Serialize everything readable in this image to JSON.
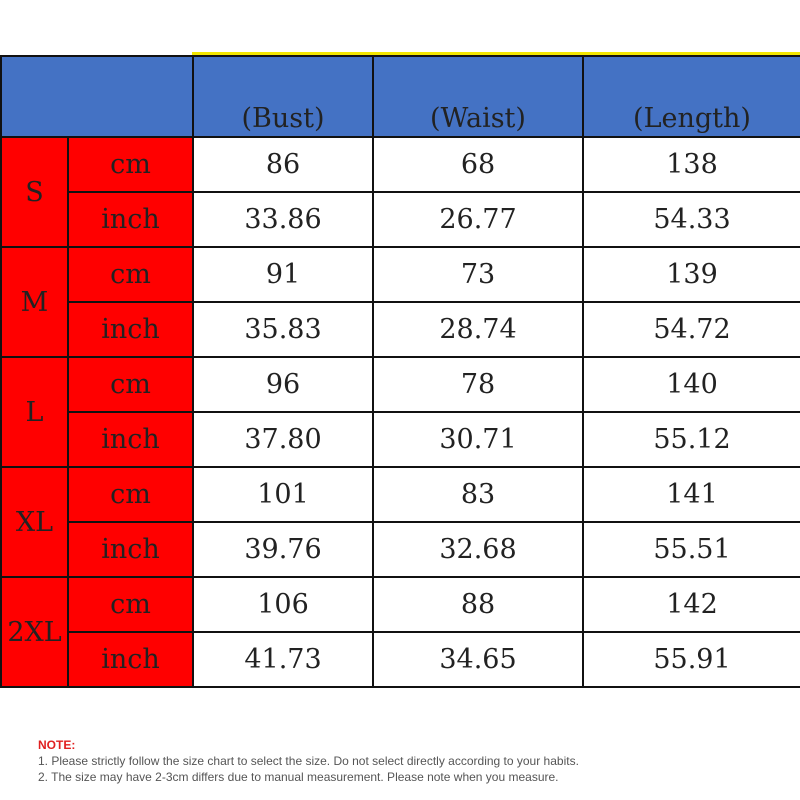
{
  "header": {
    "bust": "(Bust)",
    "waist": "(Waist)",
    "length": "(Length)"
  },
  "rows": [
    {
      "size": "S",
      "cm_label": "cm",
      "cm": [
        "86",
        "68",
        "138"
      ],
      "inch_label": "inch",
      "inch": [
        "33.86",
        "26.77",
        "54.33"
      ]
    },
    {
      "size": "M",
      "cm_label": "cm",
      "cm": [
        "91",
        "73",
        "139"
      ],
      "inch_label": "inch",
      "inch": [
        "35.83",
        "28.74",
        "54.72"
      ]
    },
    {
      "size": "L",
      "cm_label": "cm",
      "cm": [
        "96",
        "78",
        "140"
      ],
      "inch_label": "inch",
      "inch": [
        "37.80",
        "30.71",
        "55.12"
      ]
    },
    {
      "size": "XL",
      "cm_label": "cm",
      "cm": [
        "101",
        "83",
        "141"
      ],
      "inch_label": "inch",
      "inch": [
        "39.76",
        "32.68",
        "55.51"
      ]
    },
    {
      "size": "2XL",
      "cm_label": "cm",
      "cm": [
        "106",
        "88",
        "142"
      ],
      "inch_label": "inch",
      "inch": [
        "41.73",
        "34.65",
        "55.91"
      ]
    }
  ],
  "note": {
    "title": "NOTE:",
    "line1": "1. Please strictly follow the size chart  to select the size. Do not select directly according to your habits.",
    "line2": "2. The size may have 2-3cm differs due to manual measurement. Please note when you measure."
  },
  "colors": {
    "header_bg": "#4472c4",
    "size_bg": "#ff0000",
    "accent": "#f2e600",
    "note_title": "#e02020"
  }
}
